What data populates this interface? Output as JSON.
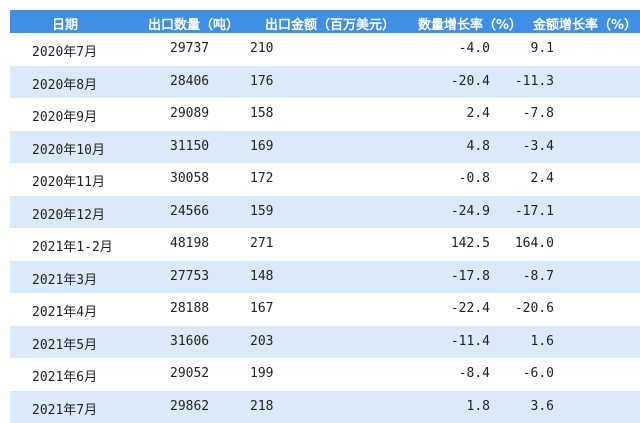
{
  "header": [
    "日期",
    "出口数量（吨）",
    "出口金额（百万美元）",
    "数量增长率（%）",
    "金额增长率（%）"
  ],
  "rows": [
    [
      "2020年7月",
      "29737",
      "210",
      "-4.0",
      "9.1"
    ],
    [
      "2020年8月",
      "28406",
      "176",
      "-20.4",
      "-11.3"
    ],
    [
      "2020年9月",
      "29089",
      "158",
      "2.4",
      "-7.8"
    ],
    [
      "2020年10月",
      "31150",
      "169",
      "4.8",
      "-3.4"
    ],
    [
      "2020年11月",
      "30058",
      "172",
      "-0.8",
      "2.4"
    ],
    [
      "2020年12月",
      "24566",
      "159",
      "-24.9",
      "-17.1"
    ],
    [
      "2021年1-2月",
      "48198",
      "271",
      "142.5",
      "164.0"
    ],
    [
      "2021年3月",
      "27753",
      "148",
      "-17.8",
      "-8.7"
    ],
    [
      "2021年4月",
      "28188",
      "167",
      "-22.4",
      "-20.6"
    ],
    [
      "2021年5月",
      "31606",
      "203",
      "-11.4",
      "1.6"
    ],
    [
      "2021年6月",
      "29052",
      "199",
      "-8.4",
      "-6.0"
    ],
    [
      "2021年7月",
      "29862",
      "218",
      "1.8",
      "3.6"
    ]
  ],
  "colors": {
    "header_bg": "#3f8fe6",
    "alt_row_bg": "#dbeaf9"
  }
}
